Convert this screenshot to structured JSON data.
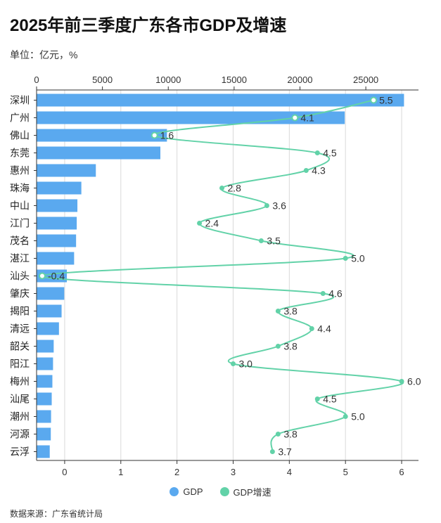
{
  "title": "2025年前三季度广东各市GDP及增速",
  "unit_label": "单位：亿元，%",
  "source": "数据来源：广东省统计局",
  "colors": {
    "bar": "#5aa9ef",
    "line": "#62d2a8",
    "grid": "#d9d9d9",
    "axis": "#333333"
  },
  "legend": {
    "gdp_label": "GDP",
    "growth_label": "GDP增速"
  },
  "chart_data": {
    "type": "bar",
    "title": "2025年前三季度广东各市GDP及增速",
    "categories": [
      "深圳",
      "广州",
      "佛山",
      "东莞",
      "惠州",
      "珠海",
      "中山",
      "江门",
      "茂名",
      "湛江",
      "汕头",
      "肇庆",
      "揭阳",
      "清远",
      "韶关",
      "阳江",
      "梅州",
      "汕尾",
      "潮州",
      "河源",
      "云浮"
    ],
    "series": [
      {
        "name": "GDP",
        "type": "bar",
        "axis": "top",
        "values": [
          27900,
          23400,
          9900,
          9400,
          4500,
          3400,
          3100,
          3050,
          3000,
          2850,
          2300,
          2100,
          1900,
          1700,
          1300,
          1250,
          1200,
          1150,
          1100,
          1080,
          1000
        ]
      },
      {
        "name": "GDP增速",
        "type": "line",
        "axis": "bottom",
        "values": [
          5.5,
          4.1,
          1.6,
          4.5,
          4.3,
          2.8,
          3.6,
          2.4,
          3.5,
          5.0,
          -0.4,
          4.6,
          3.8,
          4.4,
          3.8,
          3.0,
          6.0,
          4.5,
          5.0,
          3.8,
          3.7
        ],
        "labels": [
          "5.5",
          "4.1",
          "1.6",
          "4.5",
          "4.3",
          "2.8",
          "3.6",
          "2.4",
          "3.5",
          "5.0",
          "-0.4",
          "4.6",
          "3.8",
          "4.4",
          "3.8",
          "3.0",
          "6.0",
          "4.5",
          "5.0",
          "3.8",
          "3.7"
        ]
      }
    ],
    "top_axis": {
      "min": 0,
      "max": 29000,
      "ticks": [
        "0",
        "5000",
        "10000",
        "15000",
        "20000",
        "25000"
      ],
      "tick_values": [
        0,
        5000,
        10000,
        15000,
        20000,
        25000
      ]
    },
    "bottom_axis": {
      "min": -0.5,
      "max": 6.3,
      "ticks": [
        "0",
        "1",
        "2",
        "3",
        "4",
        "5",
        "6"
      ],
      "tick_values": [
        0,
        1,
        2,
        3,
        4,
        5,
        6
      ]
    }
  }
}
